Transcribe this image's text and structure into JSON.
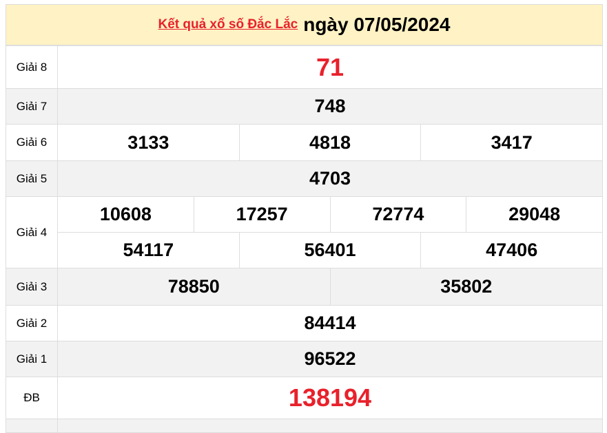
{
  "title": {
    "link": "Kết quả xổ số Đắc Lắc",
    "date": "ngày 07/05/2024"
  },
  "prizes": [
    {
      "label": "Giải 8",
      "numbers": [
        "71"
      ]
    },
    {
      "label": "Giải 7",
      "numbers": [
        "748"
      ]
    },
    {
      "label": "Giải 6",
      "numbers": [
        "3133",
        "4818",
        "3417"
      ]
    },
    {
      "label": "Giải 5",
      "numbers": [
        "4703"
      ]
    },
    {
      "label": "Giải 4",
      "numbers": [
        "10608",
        "17257",
        "72774",
        "29048",
        "54117",
        "56401",
        "47406"
      ]
    },
    {
      "label": "Giải 3",
      "numbers": [
        "78850",
        "35802"
      ]
    },
    {
      "label": "Giải 2",
      "numbers": [
        "84414"
      ]
    },
    {
      "label": "Giải 1",
      "numbers": [
        "96522"
      ]
    },
    {
      "label": "ĐB",
      "numbers": [
        "138194"
      ]
    }
  ],
  "colors": {
    "accent": "#e8212b",
    "header_bg": "#fff2c4",
    "alt_row": "#f2f2f2"
  }
}
